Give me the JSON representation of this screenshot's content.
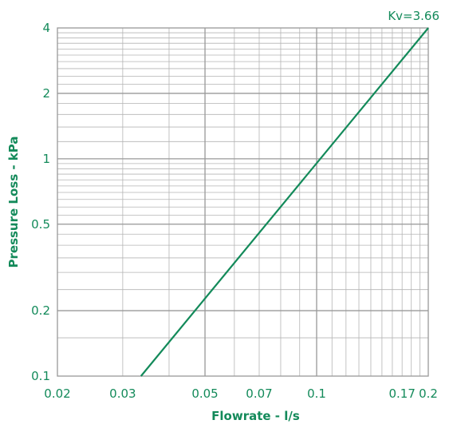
{
  "chart_data": {
    "type": "line",
    "xlabel": "Flowrate - l/s",
    "ylabel": "Pressure Loss - kPa",
    "xscale": "log",
    "yscale": "log",
    "xlim": [
      0.02,
      0.2
    ],
    "ylim": [
      0.1,
      4
    ],
    "x_tick_labels": [
      "0.02",
      "0.03",
      "0.05",
      "0.07",
      "0.1",
      "0.17",
      "0.2"
    ],
    "x_ticks": [
      0.02,
      0.03,
      0.05,
      0.07,
      0.1,
      0.17,
      0.2
    ],
    "y_tick_labels": [
      "0.1",
      "0.2",
      "0.5",
      "1",
      "2",
      "4"
    ],
    "y_ticks": [
      0.1,
      0.2,
      0.5,
      1,
      2,
      4
    ],
    "grid": true,
    "series": [
      {
        "name": "Kv=3.66",
        "x": [
          0.0336,
          0.2
        ],
        "y": [
          0.1,
          4
        ]
      }
    ],
    "annotations": [
      {
        "text": "Kv=3.66"
      }
    ],
    "colors": {
      "line": "#138a5a",
      "text": "#138a5a",
      "grid": "#b4b4b4"
    }
  }
}
